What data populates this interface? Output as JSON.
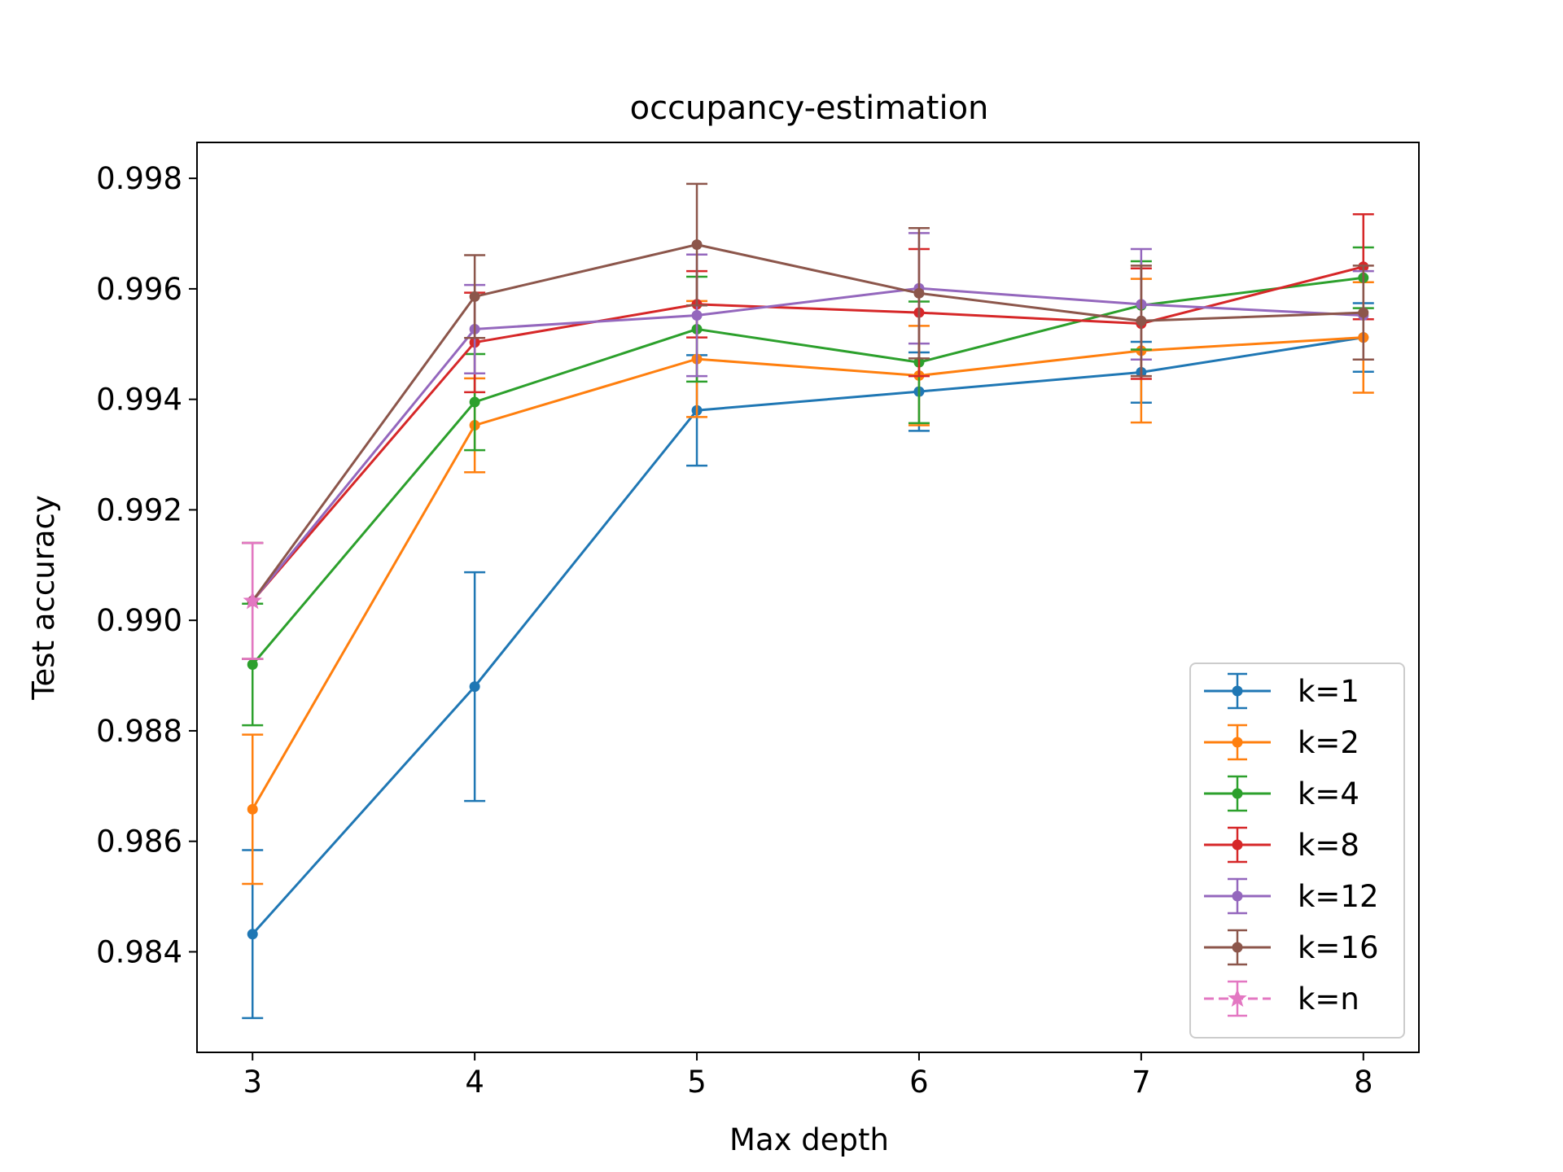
{
  "chart_data": {
    "type": "line",
    "title": "occupancy-estimation",
    "xlabel": "Max depth",
    "ylabel": "Test accuracy",
    "x": [
      3,
      4,
      5,
      6,
      7,
      8
    ],
    "xlim": [
      2.75,
      8.25
    ],
    "ylim": [
      0.98218,
      0.99865
    ],
    "xticks": [
      3,
      4,
      5,
      6,
      7,
      8
    ],
    "xtick_labels": [
      "3",
      "4",
      "5",
      "6",
      "7",
      "8"
    ],
    "yticks": [
      0.984,
      0.986,
      0.988,
      0.99,
      0.992,
      0.994,
      0.996,
      0.998
    ],
    "ytick_labels": [
      "0.984",
      "0.986",
      "0.988",
      "0.990",
      "0.992",
      "0.994",
      "0.996",
      "0.998"
    ],
    "grid": false,
    "legend_position": "lower-right",
    "series": [
      {
        "name": "k=1",
        "color": "#1f77b4",
        "marker": "circle",
        "linestyle": "solid",
        "x": [
          3,
          4,
          5,
          6,
          7,
          8
        ],
        "values": [
          0.98432,
          0.9888,
          0.9938,
          0.99414,
          0.99449,
          0.99512
        ],
        "errors": [
          0.00152,
          0.00207,
          0.001,
          0.00071,
          0.00055,
          0.00062
        ]
      },
      {
        "name": "k=2",
        "color": "#ff7f0e",
        "marker": "circle",
        "linestyle": "solid",
        "x": [
          3,
          4,
          5,
          6,
          7,
          8
        ],
        "values": [
          0.98658,
          0.99353,
          0.99473,
          0.99443,
          0.99488,
          0.99512
        ],
        "errors": [
          0.00135,
          0.00085,
          0.00105,
          0.0009,
          0.0013,
          0.001
        ]
      },
      {
        "name": "k=4",
        "color": "#2ca02c",
        "marker": "circle",
        "linestyle": "solid",
        "x": [
          3,
          4,
          5,
          6,
          7,
          8
        ],
        "values": [
          0.9892,
          0.99395,
          0.99527,
          0.99467,
          0.9957,
          0.9962
        ],
        "errors": [
          0.0011,
          0.00087,
          0.00095,
          0.0011,
          0.0008,
          0.00055
        ]
      },
      {
        "name": "k=8",
        "color": "#d62728",
        "marker": "circle",
        "linestyle": "solid",
        "x": [
          3,
          4,
          5,
          6,
          7,
          8
        ],
        "values": [
          0.99035,
          0.99503,
          0.99572,
          0.99557,
          0.99537,
          0.9964
        ],
        "errors": [
          0.00105,
          0.0009,
          0.0006,
          0.00115,
          0.001,
          0.00095
        ]
      },
      {
        "name": "k=12",
        "color": "#9467bd",
        "marker": "circle",
        "linestyle": "solid",
        "x": [
          3,
          4,
          5,
          6,
          7,
          8
        ],
        "values": [
          0.99035,
          0.99527,
          0.99552,
          0.99601,
          0.99572,
          0.99552
        ],
        "errors": [
          0.00105,
          0.0008,
          0.0011,
          0.001,
          0.001,
          0.0008
        ]
      },
      {
        "name": "k=16",
        "color": "#8c564b",
        "marker": "circle",
        "linestyle": "solid",
        "x": [
          3,
          4,
          5,
          6,
          7,
          8
        ],
        "values": [
          0.99035,
          0.99586,
          0.9968,
          0.99592,
          0.99542,
          0.99557
        ],
        "errors": [
          0.00105,
          0.00075,
          0.0011,
          0.00118,
          0.001,
          0.00085
        ]
      },
      {
        "name": "k=n",
        "color": "#e377c2",
        "marker": "star",
        "linestyle": "dashed",
        "x": [
          3
        ],
        "values": [
          0.99035
        ],
        "errors": [
          0.00105
        ]
      }
    ]
  }
}
